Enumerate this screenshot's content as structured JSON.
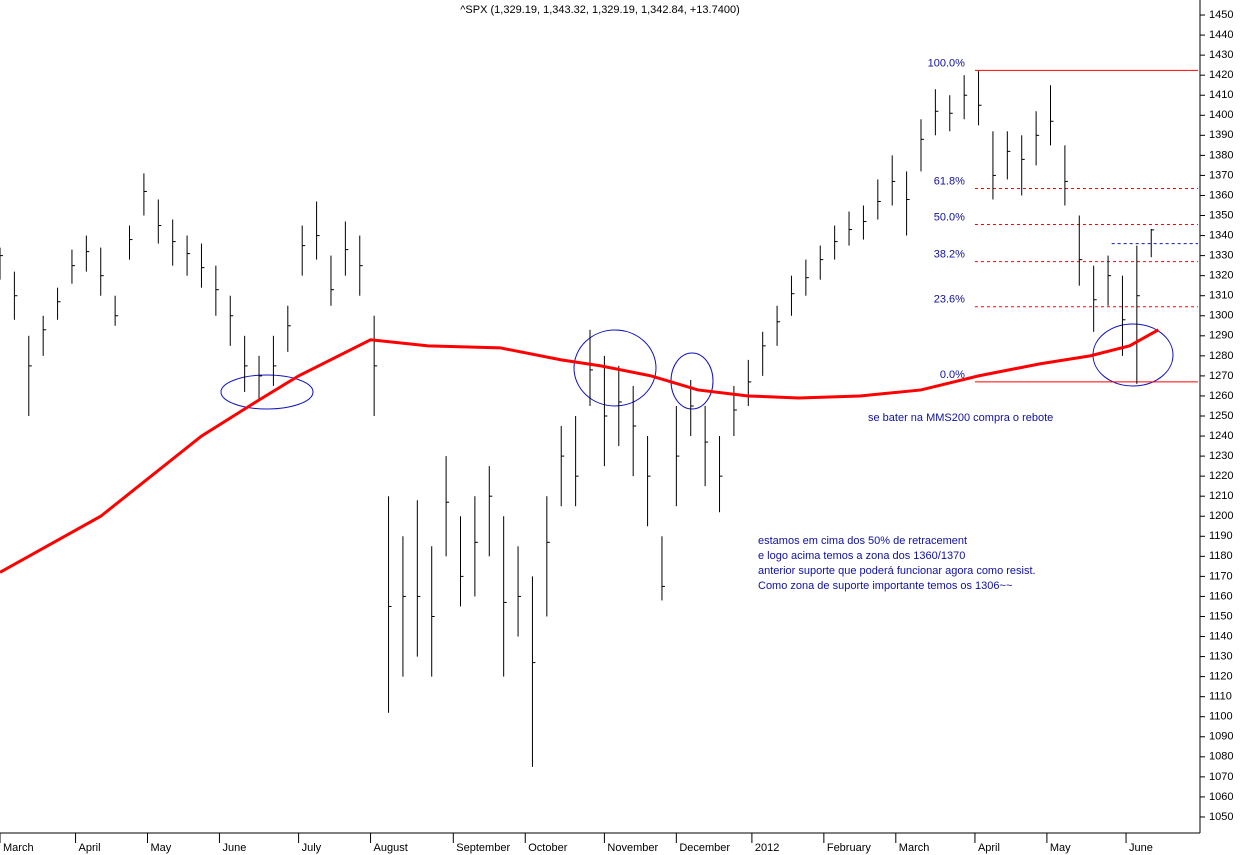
{
  "chart_data": {
    "type": "ohlc",
    "title": "^SPX (1,329.19, 1,343.32, 1,329.19, 1,342.84, +13.7400)",
    "x": [
      0,
      4,
      8,
      12,
      16,
      20,
      24,
      28,
      32,
      36,
      40,
      44,
      48,
      52,
      56,
      60,
      64,
      68,
      72,
      76,
      80,
      84,
      88,
      92,
      96,
      100,
      104,
      108,
      112,
      116,
      120,
      124,
      128,
      132,
      136,
      140,
      144,
      148,
      152,
      156,
      160,
      164,
      168,
      172,
      176,
      180,
      184,
      188,
      192,
      196,
      200,
      204,
      208,
      212,
      216,
      220,
      224,
      228,
      232,
      236,
      240,
      244,
      248,
      252,
      256,
      260,
      264,
      268,
      272,
      276,
      280,
      284,
      288,
      292,
      296,
      300,
      304,
      308,
      312,
      316,
      320
    ],
    "high": [
      1334,
      1322,
      1290,
      1300,
      1314,
      1333,
      1340,
      1334,
      1310,
      1345,
      1371,
      1358,
      1348,
      1340,
      1336,
      1325,
      1310,
      1290,
      1280,
      1290,
      1305,
      1345,
      1357,
      1330,
      1347,
      1340,
      1300,
      1210,
      1190,
      1208,
      1185,
      1230,
      1200,
      1210,
      1225,
      1200,
      1185,
      1170,
      1210,
      1245,
      1250,
      1293,
      1280,
      1275,
      1265,
      1240,
      1190,
      1255,
      1268,
      1255,
      1240,
      1265,
      1278,
      1292,
      1305,
      1320,
      1328,
      1335,
      1345,
      1352,
      1355,
      1368,
      1380,
      1372,
      1398,
      1413,
      1410,
      1420,
      1422,
      1392,
      1392,
      1390,
      1402,
      1415,
      1385,
      1350,
      1325,
      1330,
      1320,
      1335,
      1343.32
    ],
    "low": [
      1318,
      1298,
      1250,
      1280,
      1298,
      1316,
      1322,
      1310,
      1295,
      1328,
      1350,
      1336,
      1325,
      1320,
      1314,
      1300,
      1285,
      1262,
      1258,
      1265,
      1282,
      1320,
      1328,
      1305,
      1320,
      1310,
      1250,
      1102,
      1120,
      1130,
      1120,
      1180,
      1155,
      1160,
      1180,
      1120,
      1140,
      1075,
      1150,
      1205,
      1205,
      1255,
      1225,
      1235,
      1220,
      1195,
      1158,
      1205,
      1240,
      1215,
      1202,
      1240,
      1255,
      1270,
      1285,
      1300,
      1310,
      1318,
      1328,
      1335,
      1338,
      1348,
      1355,
      1340,
      1372,
      1390,
      1392,
      1398,
      1395,
      1358,
      1368,
      1360,
      1375,
      1385,
      1355,
      1315,
      1292,
      1305,
      1280,
      1266,
      1329.19
    ],
    "close": [
      1330,
      1310,
      1275,
      1293,
      1307,
      1325,
      1332,
      1320,
      1300,
      1338,
      1362,
      1345,
      1337,
      1331,
      1324,
      1313,
      1300,
      1275,
      1270,
      1275,
      1295,
      1335,
      1340,
      1313,
      1333,
      1325,
      1275,
      1155,
      1160,
      1160,
      1150,
      1207,
      1170,
      1187,
      1210,
      1157,
      1160,
      1127,
      1187,
      1230,
      1220,
      1273,
      1250,
      1257,
      1245,
      1220,
      1165,
      1230,
      1255,
      1237,
      1220,
      1253,
      1267,
      1285,
      1297,
      1311,
      1319,
      1328,
      1337,
      1343,
      1347,
      1357,
      1367,
      1358,
      1388,
      1402,
      1401,
      1410,
      1405,
      1370,
      1382,
      1378,
      1390,
      1397,
      1367,
      1328,
      1308,
      1320,
      1298,
      1310,
      1342.84
    ],
    "color": "#000000",
    "ma": {
      "color": "#ff0000",
      "x": [
        0,
        28,
        56,
        72,
        83,
        103,
        119,
        139,
        156,
        167,
        181,
        194,
        208,
        222,
        239,
        256,
        272,
        289,
        303,
        314,
        322
      ],
      "values": [
        1172,
        1200,
        1240,
        1258,
        1270,
        1288,
        1285,
        1284,
        1278,
        1275,
        1270,
        1263,
        1260,
        1259,
        1260,
        1263,
        1270,
        1276,
        1280,
        1285,
        1293
      ]
    },
    "fib_start": 271,
    "fib_color": "#ff0000",
    "fib_levels": [
      {
        "label": "100.0%",
        "value": 1422.4
      },
      {
        "label": "61.8%",
        "value": 1363.5
      },
      {
        "label": "50.0%",
        "value": 1345.5
      },
      {
        "label": "38.2%",
        "value": 1327
      },
      {
        "label": "23.6%",
        "value": 1304.5
      },
      {
        "label": "0.0%",
        "value": 1267
      }
    ],
    "resistance": {
      "value": 1336,
      "start": 309,
      "color": "#1010c0"
    },
    "xlim": [
      0,
      333
    ],
    "ylim": [
      1042,
      1457.5
    ],
    "yticks": [
      1050,
      1060,
      1070,
      1080,
      1090,
      1100,
      1110,
      1120,
      1130,
      1140,
      1150,
      1160,
      1170,
      1180,
      1190,
      1200,
      1210,
      1220,
      1230,
      1240,
      1250,
      1260,
      1270,
      1280,
      1290,
      1300,
      1310,
      1320,
      1330,
      1340,
      1350,
      1360,
      1370,
      1380,
      1390,
      1400,
      1410,
      1420,
      1430,
      1440,
      1450
    ],
    "xticks": [
      {
        "value": 0,
        "label": "March"
      },
      {
        "value": 21,
        "label": "April"
      },
      {
        "value": 41,
        "label": "May"
      },
      {
        "value": 61,
        "label": "June"
      },
      {
        "value": 83,
        "label": "July"
      },
      {
        "value": 103,
        "label": "August"
      },
      {
        "value": 126,
        "label": "September"
      },
      {
        "value": 146,
        "label": "October"
      },
      {
        "value": 168,
        "label": "November"
      },
      {
        "value": 188,
        "label": "December"
      },
      {
        "value": 209,
        "label": "2012"
      },
      {
        "value": 229,
        "label": "February"
      },
      {
        "value": 249,
        "label": "March"
      },
      {
        "value": 271,
        "label": "April"
      },
      {
        "value": 291,
        "label": "May"
      },
      {
        "value": 313,
        "label": "June"
      }
    ],
    "annotations": [
      "se bater na MMS200 compra o rebote",
      "estamos em cima dos 50% de retracement",
      "e logo acima temos a zona dos 1360/1370",
      "anterior suporte que poderá funcionar agora como resist.",
      "Como zona de suporte importante temos os 1306~~"
    ]
  }
}
